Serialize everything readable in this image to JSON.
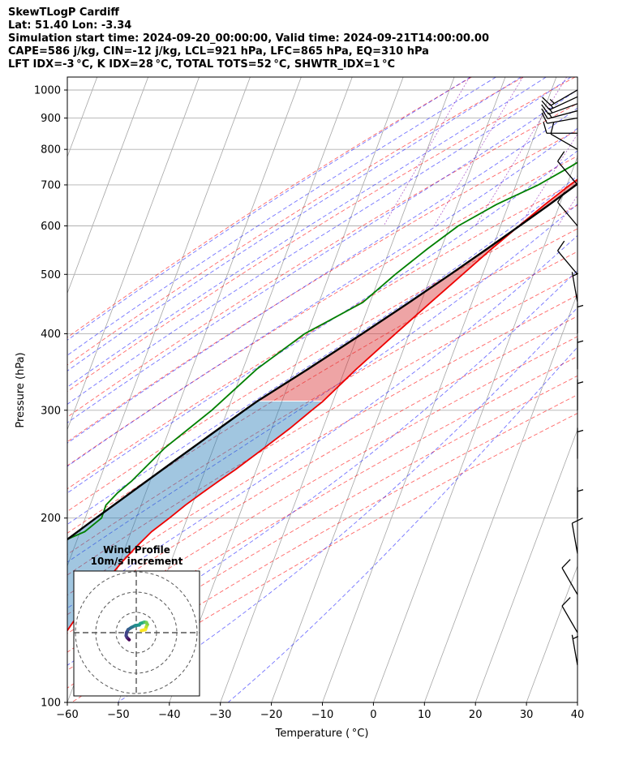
{
  "header": {
    "line1": "SkewTLogP Cardiff",
    "line2": "Lat: 51.40   Lon: -3.34",
    "line3": "Simulation start time: 2024-09-20_00:00:00, Valid time: 2024-09-21T14:00:00.00",
    "line4": "CAPE=586 j/kg, CIN=-12 j/kg, LCL=921 hPa, LFC=865 hPa, EQ=310 hPa",
    "line5": "LFT IDX=-3 °C, K IDX=28 °C, TOTAL TOTS=52 °C, SHWTR_IDX=1 °C"
  },
  "colors": {
    "temperature": "#ee0000",
    "dewpoint": "#008000",
    "parcel": "#000000",
    "cape_fill": "#1f77b4",
    "cin_fill": "#d62728",
    "dry_adiabat": "#ff0000",
    "moist_adiabat": "#0000ff",
    "mixing_ratio": "#8000aa",
    "isotherm": "#808080"
  },
  "chart_data": {
    "type": "line",
    "xlabel": "Temperature ( °C)",
    "ylabel": "Pressure (hPa)",
    "xlim": [
      -60,
      40
    ],
    "ylim": [
      1050,
      100
    ],
    "y_scale": "log",
    "x_ticks": [
      -60,
      -50,
      -40,
      -30,
      -20,
      -10,
      0,
      10,
      20,
      30,
      40
    ],
    "x_tick_labels": [
      "−60",
      "−50",
      "−40",
      "−30",
      "−20",
      "−10",
      "0",
      "10",
      "20",
      "30",
      "40"
    ],
    "y_ticks": [
      1000,
      900,
      800,
      700,
      600,
      500,
      400,
      300,
      200,
      100
    ],
    "y_tick_labels": [
      "1000",
      "900",
      "800",
      "700",
      "600",
      "500",
      "400",
      "300",
      "200",
      "100"
    ],
    "grid": true,
    "series": [
      {
        "name": "Temperature",
        "pressure": [
          1000,
          950,
          900,
          850,
          800,
          750,
          700,
          650,
          600,
          550,
          500,
          450,
          400,
          350,
          310,
          300,
          280,
          260,
          250,
          240,
          230,
          220,
          210,
          200,
          190,
          180,
          170,
          160,
          150,
          140,
          130,
          120,
          110,
          100
        ],
        "temp": [
          21,
          17.5,
          14.6,
          11.0,
          7.6,
          4.2,
          0.6,
          -2.9,
          -6.4,
          -10.1,
          -13.9,
          -18.1,
          -22.7,
          -27.8,
          -32.0,
          -33.5,
          -36.5,
          -40.1,
          -42.1,
          -44.1,
          -46.5,
          -48.9,
          -51.3,
          -53.5,
          -56.0,
          -57.8,
          -59.5,
          -61.0,
          -62.8,
          -64.2,
          -65.4,
          -66.8,
          -68.3,
          -69.5
        ]
      },
      {
        "name": "Dewpoint",
        "pressure": [
          1000,
          950,
          925,
          900,
          850,
          800,
          750,
          700,
          650,
          600,
          550,
          500,
          450,
          420,
          400,
          350,
          300,
          260,
          230,
          220,
          210,
          200,
          190,
          185,
          175,
          160,
          140,
          120,
          100
        ],
        "temp": [
          15.6,
          15.1,
          13.9,
          12.4,
          7.8,
          3.6,
          -0.6,
          -5.6,
          -12.4,
          -18.3,
          -22.7,
          -27.1,
          -31.4,
          -36.7,
          -40.5,
          -47.3,
          -53.1,
          -59.6,
          -63.6,
          -65.5,
          -66.9,
          -66.8,
          -69.1,
          -71.8,
          -75.7,
          -76.8,
          -79.0,
          -82.1,
          -85.3
        ]
      },
      {
        "name": "Parcel",
        "pressure": [
          1000,
          950,
          921,
          900,
          850,
          800,
          750,
          700,
          650,
          600,
          550,
          500,
          450,
          400,
          350,
          310,
          300,
          250,
          200,
          150,
          100
        ],
        "temp": [
          21.0,
          16.4,
          15.3,
          14.2,
          11.5,
          8.5,
          5.3,
          1.8,
          -2.0,
          -6.3,
          -11.0,
          -16.3,
          -22.3,
          -29.2,
          -37.3,
          -44.9,
          -46.7,
          -56.3,
          -67.9,
          -82.4,
          -100.4
        ]
      }
    ],
    "wind_barbs": [
      {
        "pressure": 1000,
        "speed_kt": 15,
        "dir_deg": 240
      },
      {
        "pressure": 975,
        "speed_kt": 15,
        "dir_deg": 245
      },
      {
        "pressure": 950,
        "speed_kt": 15,
        "dir_deg": 250
      },
      {
        "pressure": 925,
        "speed_kt": 15,
        "dir_deg": 255
      },
      {
        "pressure": 900,
        "speed_kt": 10,
        "dir_deg": 260
      },
      {
        "pressure": 850,
        "speed_kt": 10,
        "dir_deg": 270
      },
      {
        "pressure": 800,
        "speed_kt": 10,
        "dir_deg": 300
      },
      {
        "pressure": 700,
        "speed_kt": 10,
        "dir_deg": 320
      },
      {
        "pressure": 600,
        "speed_kt": 10,
        "dir_deg": 320
      },
      {
        "pressure": 500,
        "speed_kt": 10,
        "dir_deg": 320
      },
      {
        "pressure": 450,
        "speed_kt": 5,
        "dir_deg": 350
      },
      {
        "pressure": 400,
        "speed_kt": 5,
        "dir_deg": 0
      },
      {
        "pressure": 350,
        "speed_kt": 5,
        "dir_deg": 0
      },
      {
        "pressure": 300,
        "speed_kt": 5,
        "dir_deg": 0
      },
      {
        "pressure": 250,
        "speed_kt": 5,
        "dir_deg": 0
      },
      {
        "pressure": 200,
        "speed_kt": 5,
        "dir_deg": 0
      },
      {
        "pressure": 175,
        "speed_kt": 10,
        "dir_deg": 350
      },
      {
        "pressure": 150,
        "speed_kt": 10,
        "dir_deg": 330
      },
      {
        "pressure": 130,
        "speed_kt": 10,
        "dir_deg": 330
      },
      {
        "pressure": 115,
        "speed_kt": 5,
        "dir_deg": 350
      }
    ],
    "hodograph": {
      "title": "Wind Profile",
      "subtitle": "10m/s increment",
      "rings_ms": [
        10,
        20,
        30
      ],
      "u": [
        -3.5,
        -4.5,
        -5,
        -4.8,
        -4,
        -2.5,
        -0.5,
        1.5,
        2,
        4,
        5,
        5.5,
        5,
        4.5,
        2.5
      ],
      "v": [
        -3.5,
        -2.5,
        -1.5,
        0,
        1.5,
        2.5,
        3.5,
        3.8,
        4.5,
        5.2,
        5,
        4,
        3,
        1.5,
        1
      ]
    }
  }
}
